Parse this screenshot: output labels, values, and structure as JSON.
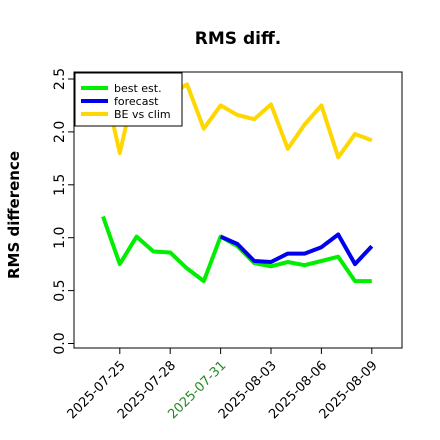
{
  "chart_data": {
    "type": "line",
    "title": "RMS diff.",
    "xlabel": "",
    "ylabel": "RMS difference",
    "x": [
      "2025-07-24",
      "2025-07-25",
      "2025-07-26",
      "2025-07-27",
      "2025-07-28",
      "2025-07-29",
      "2025-07-30",
      "2025-07-31",
      "2025-08-01",
      "2025-08-02",
      "2025-08-03",
      "2025-08-04",
      "2025-08-05",
      "2025-08-06",
      "2025-08-07",
      "2025-08-08",
      "2025-08-09"
    ],
    "x_tick_labels": [
      "2025-07-25",
      "2025-07-28",
      "2025-07-31",
      "2025-08-03",
      "2025-08-06",
      "2025-08-09"
    ],
    "highlighted_tick": "2025-07-31",
    "ylim": [
      -0.05,
      2.6
    ],
    "y_ticks": [
      "0.0",
      "0.5",
      "1.0",
      "1.5",
      "2.0",
      "2.5"
    ],
    "legend_position": "top-left",
    "series": [
      {
        "name": "best est.",
        "color": "#00ee00",
        "values": [
          1.2,
          0.75,
          1.01,
          0.87,
          0.86,
          0.71,
          0.59,
          1.01,
          0.92,
          0.76,
          0.73,
          0.77,
          0.74,
          0.78,
          0.82,
          0.59,
          0.59
        ]
      },
      {
        "name": "forecast",
        "color": "#0000ee",
        "values": [
          null,
          null,
          null,
          null,
          null,
          null,
          null,
          1.01,
          0.94,
          0.78,
          0.77,
          0.85,
          0.85,
          0.91,
          1.03,
          0.75,
          0.92
        ]
      },
      {
        "name": "BE vs clim",
        "color": "#ffd700",
        "values": [
          2.5,
          1.8,
          2.5,
          2.35,
          2.35,
          2.45,
          2.03,
          2.25,
          2.16,
          2.12,
          2.26,
          1.84,
          2.07,
          2.25,
          1.76,
          1.98,
          1.92
        ]
      }
    ]
  }
}
